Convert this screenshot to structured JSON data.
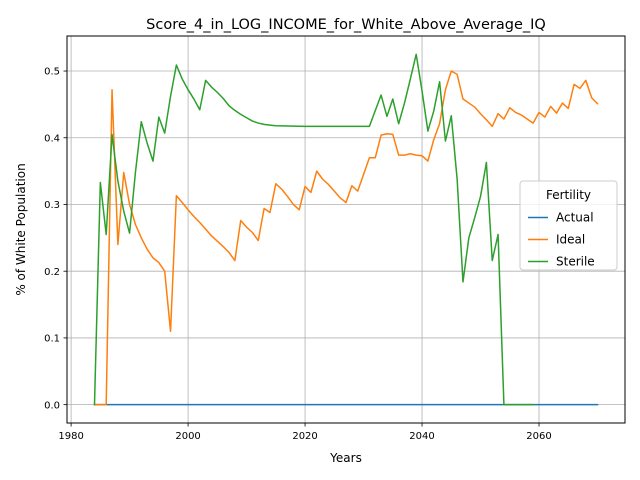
{
  "chart_data": {
    "type": "line",
    "title": "Score_4_in_LOG_INCOME_for_White_Above_Average_IQ",
    "xlabel": "Years",
    "ylabel": "% of White Population",
    "xlim": [
      1979.3,
      2074.7
    ],
    "ylim": [
      -0.0275,
      0.5525
    ],
    "xticks": [
      1980,
      2000,
      2020,
      2040,
      2060
    ],
    "xtick_labels": [
      "1980",
      "2000",
      "2020",
      "2040",
      "2060"
    ],
    "yticks": [
      0.0,
      0.1,
      0.2,
      0.3,
      0.4,
      0.5
    ],
    "ytick_labels": [
      "0.0",
      "0.1",
      "0.2",
      "0.3",
      "0.4",
      "0.5"
    ],
    "grid": true,
    "legend": {
      "title": "Fertility",
      "position": "center-right"
    },
    "series": [
      {
        "name": "Actual",
        "color": "#1f77b4",
        "x": [
          1984,
          2070
        ],
        "y": [
          0.0,
          0.0
        ]
      },
      {
        "name": "Ideal",
        "color": "#ff7f0e",
        "x": [
          1984,
          1985,
          1986,
          1987,
          1988,
          1989,
          1990,
          1991,
          1992,
          1993,
          1994,
          1995,
          1996,
          1997,
          1998,
          1999,
          2000,
          2001,
          2002,
          2003,
          2004,
          2005,
          2006,
          2007,
          2008,
          2009,
          2010,
          2011,
          2012,
          2013,
          2014,
          2015,
          2016,
          2017,
          2018,
          2019,
          2020,
          2021,
          2022,
          2023,
          2024,
          2025,
          2026,
          2027,
          2028,
          2029,
          2030,
          2031,
          2032,
          2033,
          2034,
          2035,
          2036,
          2037,
          2038,
          2039,
          2040,
          2041,
          2042,
          2043,
          2044,
          2045,
          2046,
          2047,
          2048,
          2049,
          2050,
          2051,
          2052,
          2053,
          2054,
          2055,
          2056,
          2057,
          2058,
          2059,
          2060,
          2061,
          2062,
          2063,
          2064,
          2065,
          2066,
          2067,
          2068,
          2069,
          2070
        ],
        "y": [
          0.0,
          0.0,
          0.0,
          0.472,
          0.24,
          0.348,
          0.3,
          0.27,
          0.25,
          0.233,
          0.22,
          0.213,
          0.2,
          0.11,
          0.313,
          0.303,
          0.292,
          0.282,
          0.273,
          0.263,
          0.253,
          0.245,
          0.237,
          0.228,
          0.216,
          0.276,
          0.266,
          0.258,
          0.246,
          0.294,
          0.288,
          0.331,
          0.323,
          0.312,
          0.3,
          0.292,
          0.327,
          0.318,
          0.35,
          0.338,
          0.33,
          0.32,
          0.31,
          0.303,
          0.328,
          0.32,
          0.345,
          0.37,
          0.37,
          0.404,
          0.406,
          0.405,
          0.374,
          0.374,
          0.376,
          0.374,
          0.373,
          0.365,
          0.397,
          0.421,
          0.472,
          0.5,
          0.495,
          0.458,
          0.452,
          0.446,
          0.436,
          0.427,
          0.417,
          0.436,
          0.428,
          0.445,
          0.438,
          0.434,
          0.428,
          0.422,
          0.438,
          0.431,
          0.447,
          0.437,
          0.452,
          0.444,
          0.48,
          0.474,
          0.486,
          0.46,
          0.451
        ]
      },
      {
        "name": "Sterile",
        "color": "#2ca02c",
        "x": [
          1984,
          1985,
          1986,
          1987,
          1988,
          1989,
          1990,
          1991,
          1992,
          1993,
          1994,
          1995,
          1996,
          1997,
          1998,
          1999,
          2000,
          2001,
          2002,
          2003,
          2004,
          2005,
          2006,
          2007,
          2008,
          2009,
          2010,
          2011,
          2012,
          2013,
          2014,
          2015,
          2020,
          2025,
          2031,
          2033,
          2034,
          2035,
          2036,
          2037,
          2038,
          2039,
          2040,
          2041,
          2042,
          2043,
          2044,
          2045,
          2046,
          2047,
          2048,
          2049,
          2050,
          2051,
          2052,
          2053,
          2054,
          2059
        ],
        "y": [
          0.0,
          0.333,
          0.255,
          0.405,
          0.335,
          0.29,
          0.257,
          0.348,
          0.424,
          0.392,
          0.365,
          0.431,
          0.407,
          0.462,
          0.509,
          0.488,
          0.472,
          0.458,
          0.442,
          0.486,
          0.476,
          0.468,
          0.459,
          0.448,
          0.441,
          0.435,
          0.43,
          0.425,
          0.422,
          0.42,
          0.419,
          0.418,
          0.417,
          0.417,
          0.417,
          0.464,
          0.432,
          0.458,
          0.421,
          0.452,
          0.488,
          0.525,
          0.47,
          0.41,
          0.44,
          0.484,
          0.395,
          0.433,
          0.338,
          0.184,
          0.25,
          0.28,
          0.312,
          0.363,
          0.216,
          0.255,
          0.0,
          0.0
        ]
      }
    ]
  }
}
